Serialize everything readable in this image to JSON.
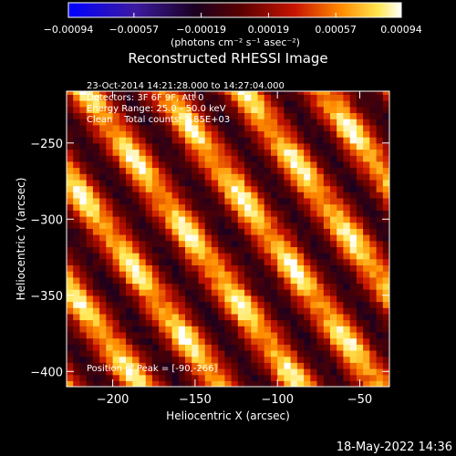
{
  "chart_data": {
    "type": "heatmap",
    "title": "Reconstructed RHESSI Image",
    "xlabel": "Heliocentric X (arcsec)",
    "ylabel": "Heliocentric Y (arcsec)",
    "xlim": [
      -228,
      -32
    ],
    "ylim": [
      -410,
      -216
    ],
    "xticks": [
      -200,
      -150,
      -100,
      -50
    ],
    "yticks": [
      -250,
      -300,
      -350,
      -400
    ],
    "xtick_labels": [
      "−200",
      "−150",
      "−100",
      "−50"
    ],
    "ytick_labels": [
      "−250",
      "−300",
      "−350",
      "−400"
    ],
    "colorbar": {
      "ticks": [
        -0.00094,
        -0.00057,
        -0.00019,
        0.00019,
        0.00057,
        0.00094
      ],
      "tick_labels": [
        "−0.00094",
        "−0.00057",
        "−0.00019",
        "0.00019",
        "0.00057",
        "0.00094"
      ],
      "units_label": "(photons cm⁻² s⁻¹ asec⁻²)",
      "range": [
        -0.00094,
        0.00094
      ]
    },
    "annotations": [
      "23-Oct-2014 14:21:28.000 to 14:27:04.000",
      "Detectors: 3F 6F 9F, Att 0",
      "Energy Range: 25.0 - 50.0 keV",
      "Clean    Total counts: 2.85E+03"
    ],
    "peak_label": "Position of Peak = [-90,-266]",
    "peak": [
      -90,
      -266
    ],
    "fringe_model": {
      "angle_deg": -34,
      "period_arcsec": 40,
      "peak_value": 0.00094,
      "trough_value": -0.00045
    }
  },
  "footer": {
    "date": "18-May-2022 14:36"
  }
}
